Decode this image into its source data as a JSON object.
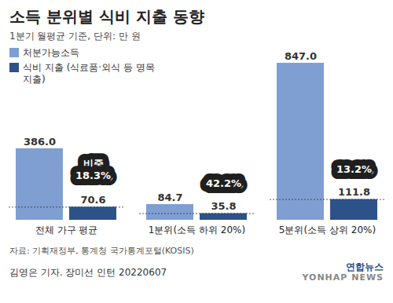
{
  "chart_data": {
    "type": "bar",
    "title": "소득 분위별 식비 지출 동향",
    "subtitle": "1분기 월평균 기준, 단위: 만 원",
    "categories": [
      "전체 가구 평균",
      "1분위(소득 하위 20%)",
      "5분위(소득 상위 20%)"
    ],
    "series": [
      {
        "name": "처분가능소득",
        "color": "#7f9fd2",
        "values": [
          386,
          84.7,
          847
        ],
        "value_labels": [
          "386.0",
          "84.7",
          "847.0"
        ]
      },
      {
        "name": "식비 지출 (식료품·외식 등 명목 지출)",
        "color": "#2d5289",
        "values": [
          70.6,
          35.8,
          111.8
        ],
        "value_labels": [
          "70.6",
          "35.8",
          "111.8"
        ]
      }
    ],
    "share": {
      "title": "비중",
      "values": [
        18.3,
        42.2,
        13.2
      ],
      "value_labels": [
        "18.3%",
        "42.2%",
        "13.2%"
      ]
    },
    "data_labels": true,
    "tick_labels": "x",
    "legend": "top-left",
    "source": "자료: 기획재정부, 통계청 국가통계포털(KOSIS)",
    "byline": "김영은 기자. 장미선 인턴 20220607",
    "logo_text": "연합뉴스",
    "logo_subtext": "YONHAP NEWS"
  }
}
